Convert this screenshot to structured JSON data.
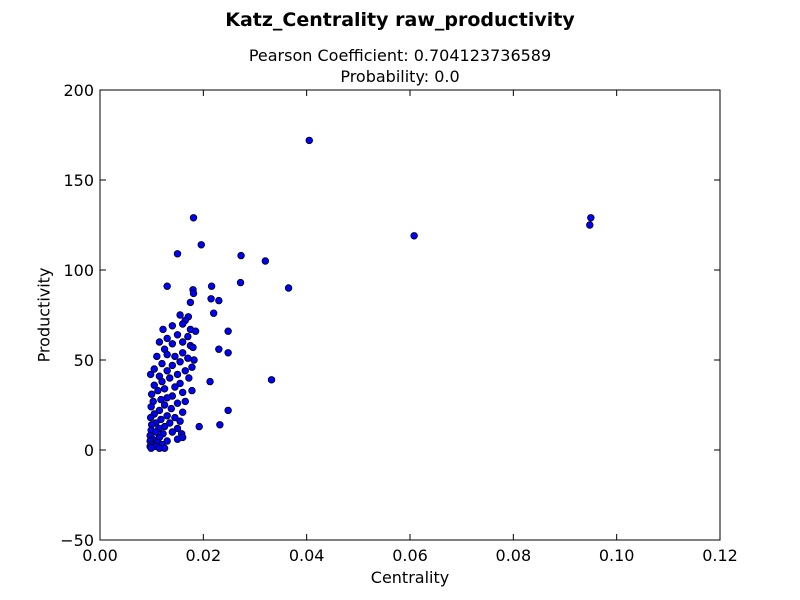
{
  "chart_data": {
    "type": "scatter",
    "title": "Katz_Centrality raw_productivity",
    "subtitle_lines": [
      "Pearson Coefficient: 0.704123736589",
      "Probability: 0.0"
    ],
    "xlabel": "Centrality",
    "ylabel": "Productivity",
    "xlim": [
      0.0,
      0.12
    ],
    "ylim": [
      -50,
      200
    ],
    "xticks": [
      "0.00",
      "0.02",
      "0.04",
      "0.06",
      "0.08",
      "0.10",
      "0.12"
    ],
    "yticks": [
      "−50",
      "0",
      "50",
      "100",
      "150",
      "200"
    ],
    "grid": false,
    "marker_color": "#0000ff",
    "points": [
      [
        0.0405,
        172
      ],
      [
        0.095,
        129
      ],
      [
        0.0948,
        125
      ],
      [
        0.0608,
        119
      ],
      [
        0.0181,
        129
      ],
      [
        0.0196,
        114
      ],
      [
        0.015,
        109
      ],
      [
        0.0273,
        108
      ],
      [
        0.032,
        105
      ],
      [
        0.0272,
        93
      ],
      [
        0.013,
        91
      ],
      [
        0.0216,
        91
      ],
      [
        0.0365,
        90
      ],
      [
        0.018,
        89
      ],
      [
        0.0181,
        87
      ],
      [
        0.0215,
        84
      ],
      [
        0.023,
        83
      ],
      [
        0.0175,
        82
      ],
      [
        0.022,
        76
      ],
      [
        0.0171,
        74
      ],
      [
        0.0155,
        75
      ],
      [
        0.0165,
        72
      ],
      [
        0.016,
        70
      ],
      [
        0.014,
        69
      ],
      [
        0.0175,
        67
      ],
      [
        0.0248,
        66
      ],
      [
        0.0122,
        67
      ],
      [
        0.0185,
        66
      ],
      [
        0.015,
        64
      ],
      [
        0.017,
        63
      ],
      [
        0.013,
        62
      ],
      [
        0.016,
        60
      ],
      [
        0.014,
        59
      ],
      [
        0.0115,
        60
      ],
      [
        0.0175,
        58
      ],
      [
        0.023,
        56
      ],
      [
        0.018,
        57
      ],
      [
        0.0125,
        56
      ],
      [
        0.0248,
        54
      ],
      [
        0.016,
        54
      ],
      [
        0.0145,
        52
      ],
      [
        0.013,
        53
      ],
      [
        0.011,
        52
      ],
      [
        0.017,
        51
      ],
      [
        0.0182,
        50
      ],
      [
        0.0155,
        49
      ],
      [
        0.012,
        48
      ],
      [
        0.014,
        47
      ],
      [
        0.0178,
        46
      ],
      [
        0.0105,
        45
      ],
      [
        0.0165,
        44
      ],
      [
        0.013,
        44
      ],
      [
        0.0098,
        42
      ],
      [
        0.015,
        42
      ],
      [
        0.0115,
        41
      ],
      [
        0.0172,
        40
      ],
      [
        0.0135,
        40
      ],
      [
        0.0332,
        39
      ],
      [
        0.0213,
        38
      ],
      [
        0.012,
        38
      ],
      [
        0.0155,
        37
      ],
      [
        0.0105,
        36
      ],
      [
        0.0145,
        35
      ],
      [
        0.0178,
        33
      ],
      [
        0.0125,
        34
      ],
      [
        0.0112,
        33
      ],
      [
        0.016,
        32
      ],
      [
        0.01,
        31
      ],
      [
        0.014,
        30
      ],
      [
        0.013,
        29
      ],
      [
        0.0118,
        28
      ],
      [
        0.0165,
        27
      ],
      [
        0.0103,
        27
      ],
      [
        0.015,
        26
      ],
      [
        0.0125,
        25
      ],
      [
        0.0099,
        24
      ],
      [
        0.0138,
        23
      ],
      [
        0.0248,
        22
      ],
      [
        0.0115,
        22
      ],
      [
        0.016,
        21
      ],
      [
        0.0105,
        20
      ],
      [
        0.013,
        19
      ],
      [
        0.0145,
        18
      ],
      [
        0.0098,
        18
      ],
      [
        0.0118,
        17
      ],
      [
        0.0155,
        16
      ],
      [
        0.0108,
        15
      ],
      [
        0.0135,
        15
      ],
      [
        0.01,
        14
      ],
      [
        0.0232,
        14
      ],
      [
        0.0125,
        13
      ],
      [
        0.0192,
        13
      ],
      [
        0.0114,
        12
      ],
      [
        0.015,
        12
      ],
      [
        0.0099,
        11
      ],
      [
        0.014,
        10
      ],
      [
        0.0108,
        10
      ],
      [
        0.0158,
        9
      ],
      [
        0.0122,
        9
      ],
      [
        0.0097,
        8
      ],
      [
        0.016,
        7
      ],
      [
        0.0115,
        7
      ],
      [
        0.015,
        6
      ],
      [
        0.0102,
        6
      ],
      [
        0.013,
        5
      ],
      [
        0.0097,
        5
      ],
      [
        0.0112,
        4
      ],
      [
        0.012,
        3
      ],
      [
        0.01,
        3
      ],
      [
        0.0108,
        2
      ],
      [
        0.0097,
        2
      ],
      [
        0.0115,
        1
      ],
      [
        0.0125,
        1
      ],
      [
        0.0099,
        1
      ]
    ]
  }
}
